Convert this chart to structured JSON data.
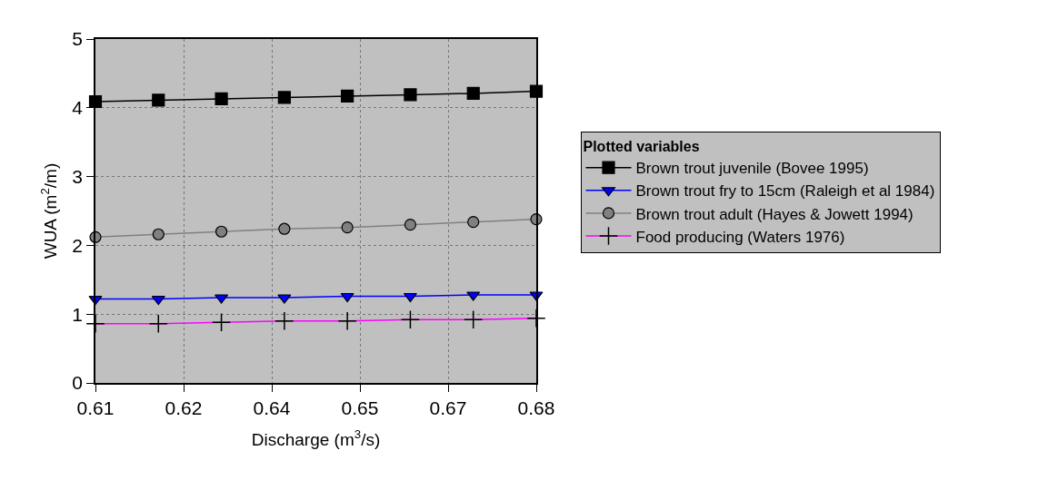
{
  "chart_data": {
    "type": "line",
    "xlabel": "Discharge (m$^{3}$/s)",
    "ylabel": "WUA (m$^{2}$/m)",
    "legend_title": "Plotted variables",
    "x": [
      0.61,
      0.62,
      0.63,
      0.64,
      0.65,
      0.66,
      0.67,
      0.68
    ],
    "xlim": [
      0.61,
      0.68
    ],
    "xticks": [
      {
        "value": 0.61,
        "label": "0.61"
      },
      {
        "value": 0.624,
        "label": "0.62"
      },
      {
        "value": 0.638,
        "label": "0.64"
      },
      {
        "value": 0.652,
        "label": "0.65"
      },
      {
        "value": 0.666,
        "label": "0.67"
      },
      {
        "value": 0.68,
        "label": "0.68"
      }
    ],
    "ylim": [
      0,
      5
    ],
    "yticks": [
      0,
      1,
      2,
      3,
      4,
      5
    ],
    "grid": true,
    "legend": "right",
    "series": [
      {
        "name": "Brown trout juvenile (Bovee 1995)",
        "color": "#000000",
        "marker": "square",
        "values": [
          4.09,
          4.11,
          4.13,
          4.15,
          4.17,
          4.19,
          4.21,
          4.24
        ]
      },
      {
        "name": "Brown trout fry to 15cm (Raleigh et al 1984)",
        "color": "#0000ff",
        "marker": "triangle",
        "values": [
          1.22,
          1.22,
          1.24,
          1.24,
          1.26,
          1.26,
          1.28,
          1.28
        ]
      },
      {
        "name": "Brown trout adult (Hayes & Jowett 1994)",
        "color": "#808080",
        "marker": "circle",
        "values": [
          2.12,
          2.16,
          2.2,
          2.24,
          2.26,
          2.3,
          2.34,
          2.38
        ]
      },
      {
        "name": "Food producing (Waters 1976)",
        "color": "#ff00ff",
        "marker": "cross",
        "values": [
          0.86,
          0.86,
          0.88,
          0.9,
          0.9,
          0.92,
          0.92,
          0.94
        ]
      }
    ]
  }
}
